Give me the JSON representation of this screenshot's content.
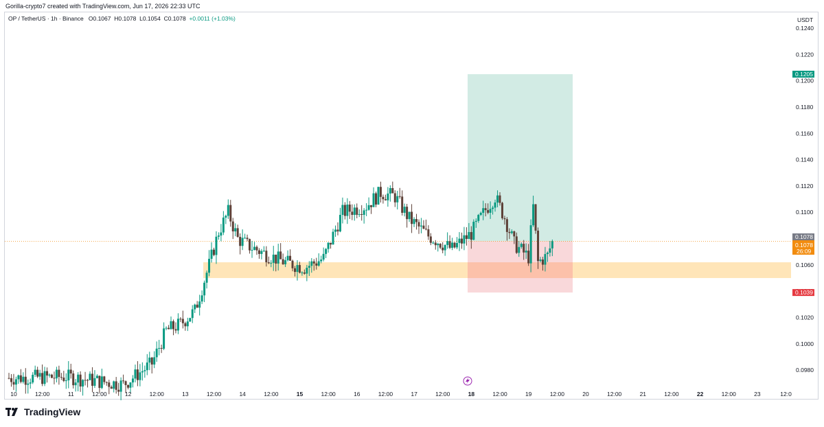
{
  "header": {
    "credit": "Gorilla-crypto7 created with TradingView.com, Jun 17, 2026 22:33 UTC",
    "symbol": "OP / TetherUS · 1h · Binance",
    "open": "O0.1067",
    "high": "H0.1078",
    "low": "L0.1054",
    "close": "C0.1078",
    "change": "+0.0011 (+1.03%)"
  },
  "footer": {
    "brand": "TradingView"
  },
  "colors": {
    "up": "#089981",
    "down": "#5d4037",
    "target_zone": "#d2ebe4",
    "stop_zone": "#f8d1d4",
    "support_zone": "#ffe5b8",
    "price_tag": "#f28c0f",
    "target_tag": "#089981",
    "stop_tag": "#e53940",
    "last_tag": "#787b86"
  },
  "chart_data": {
    "type": "candlestick",
    "currency": "USDT",
    "ylim": [
      0.0966,
      0.1252
    ],
    "y_ticks": [
      "0.1240",
      "0.1220",
      "0.1200",
      "0.1180",
      "0.1160",
      "0.1140",
      "0.1120",
      "0.1100",
      "0.1080",
      "0.1060",
      "0.1040",
      "0.1020",
      "0.1000",
      "0.0980"
    ],
    "x_ticks": [
      "10",
      "12:00",
      "11",
      "12:00",
      "12",
      "12:00",
      "13",
      "12:00",
      "14",
      "12:00",
      "15",
      "12:00",
      "16",
      "12:00",
      "17",
      "12:00",
      "18",
      "12:00",
      "19",
      "12:00",
      "20",
      "12:00",
      "21",
      "12:00",
      "22",
      "12:00",
      "23",
      "12:0"
    ],
    "bold_x_ticks": [
      "15",
      "18",
      "22"
    ],
    "support_zone": [
      0.105,
      0.1062
    ],
    "long_position": {
      "entry": 0.1078,
      "target": 0.1205,
      "stop": 0.1039
    },
    "price_labels": {
      "target": "0.1205",
      "last": "0.1078",
      "current": "0.1078",
      "countdown": "26:09",
      "stop": "0.1039"
    },
    "price_anchors": [
      [
        0,
        0.0974
      ],
      [
        24,
        0.0975
      ],
      [
        48,
        0.0969
      ],
      [
        60,
        0.0985
      ],
      [
        66,
        0.101
      ],
      [
        72,
        0.1015
      ],
      [
        78,
        0.1025
      ],
      [
        84,
        0.106
      ],
      [
        88,
        0.1085
      ],
      [
        92,
        0.11
      ],
      [
        96,
        0.108
      ],
      [
        100,
        0.1075
      ],
      [
        108,
        0.1068
      ],
      [
        116,
        0.1062
      ],
      [
        124,
        0.1058
      ],
      [
        132,
        0.1065
      ],
      [
        140,
        0.11
      ],
      [
        150,
        0.1105
      ],
      [
        156,
        0.1115
      ],
      [
        162,
        0.1112
      ],
      [
        168,
        0.1095
      ],
      [
        176,
        0.1082
      ],
      [
        186,
        0.1072
      ],
      [
        194,
        0.1084
      ],
      [
        200,
        0.1102
      ],
      [
        204,
        0.1112
      ],
      [
        208,
        0.1096
      ],
      [
        212,
        0.1076
      ],
      [
        218,
        0.1066
      ],
      [
        220,
        0.1104
      ],
      [
        222,
        0.1062
      ],
      [
        226,
        0.1067
      ],
      [
        228,
        0.1078
      ]
    ]
  }
}
